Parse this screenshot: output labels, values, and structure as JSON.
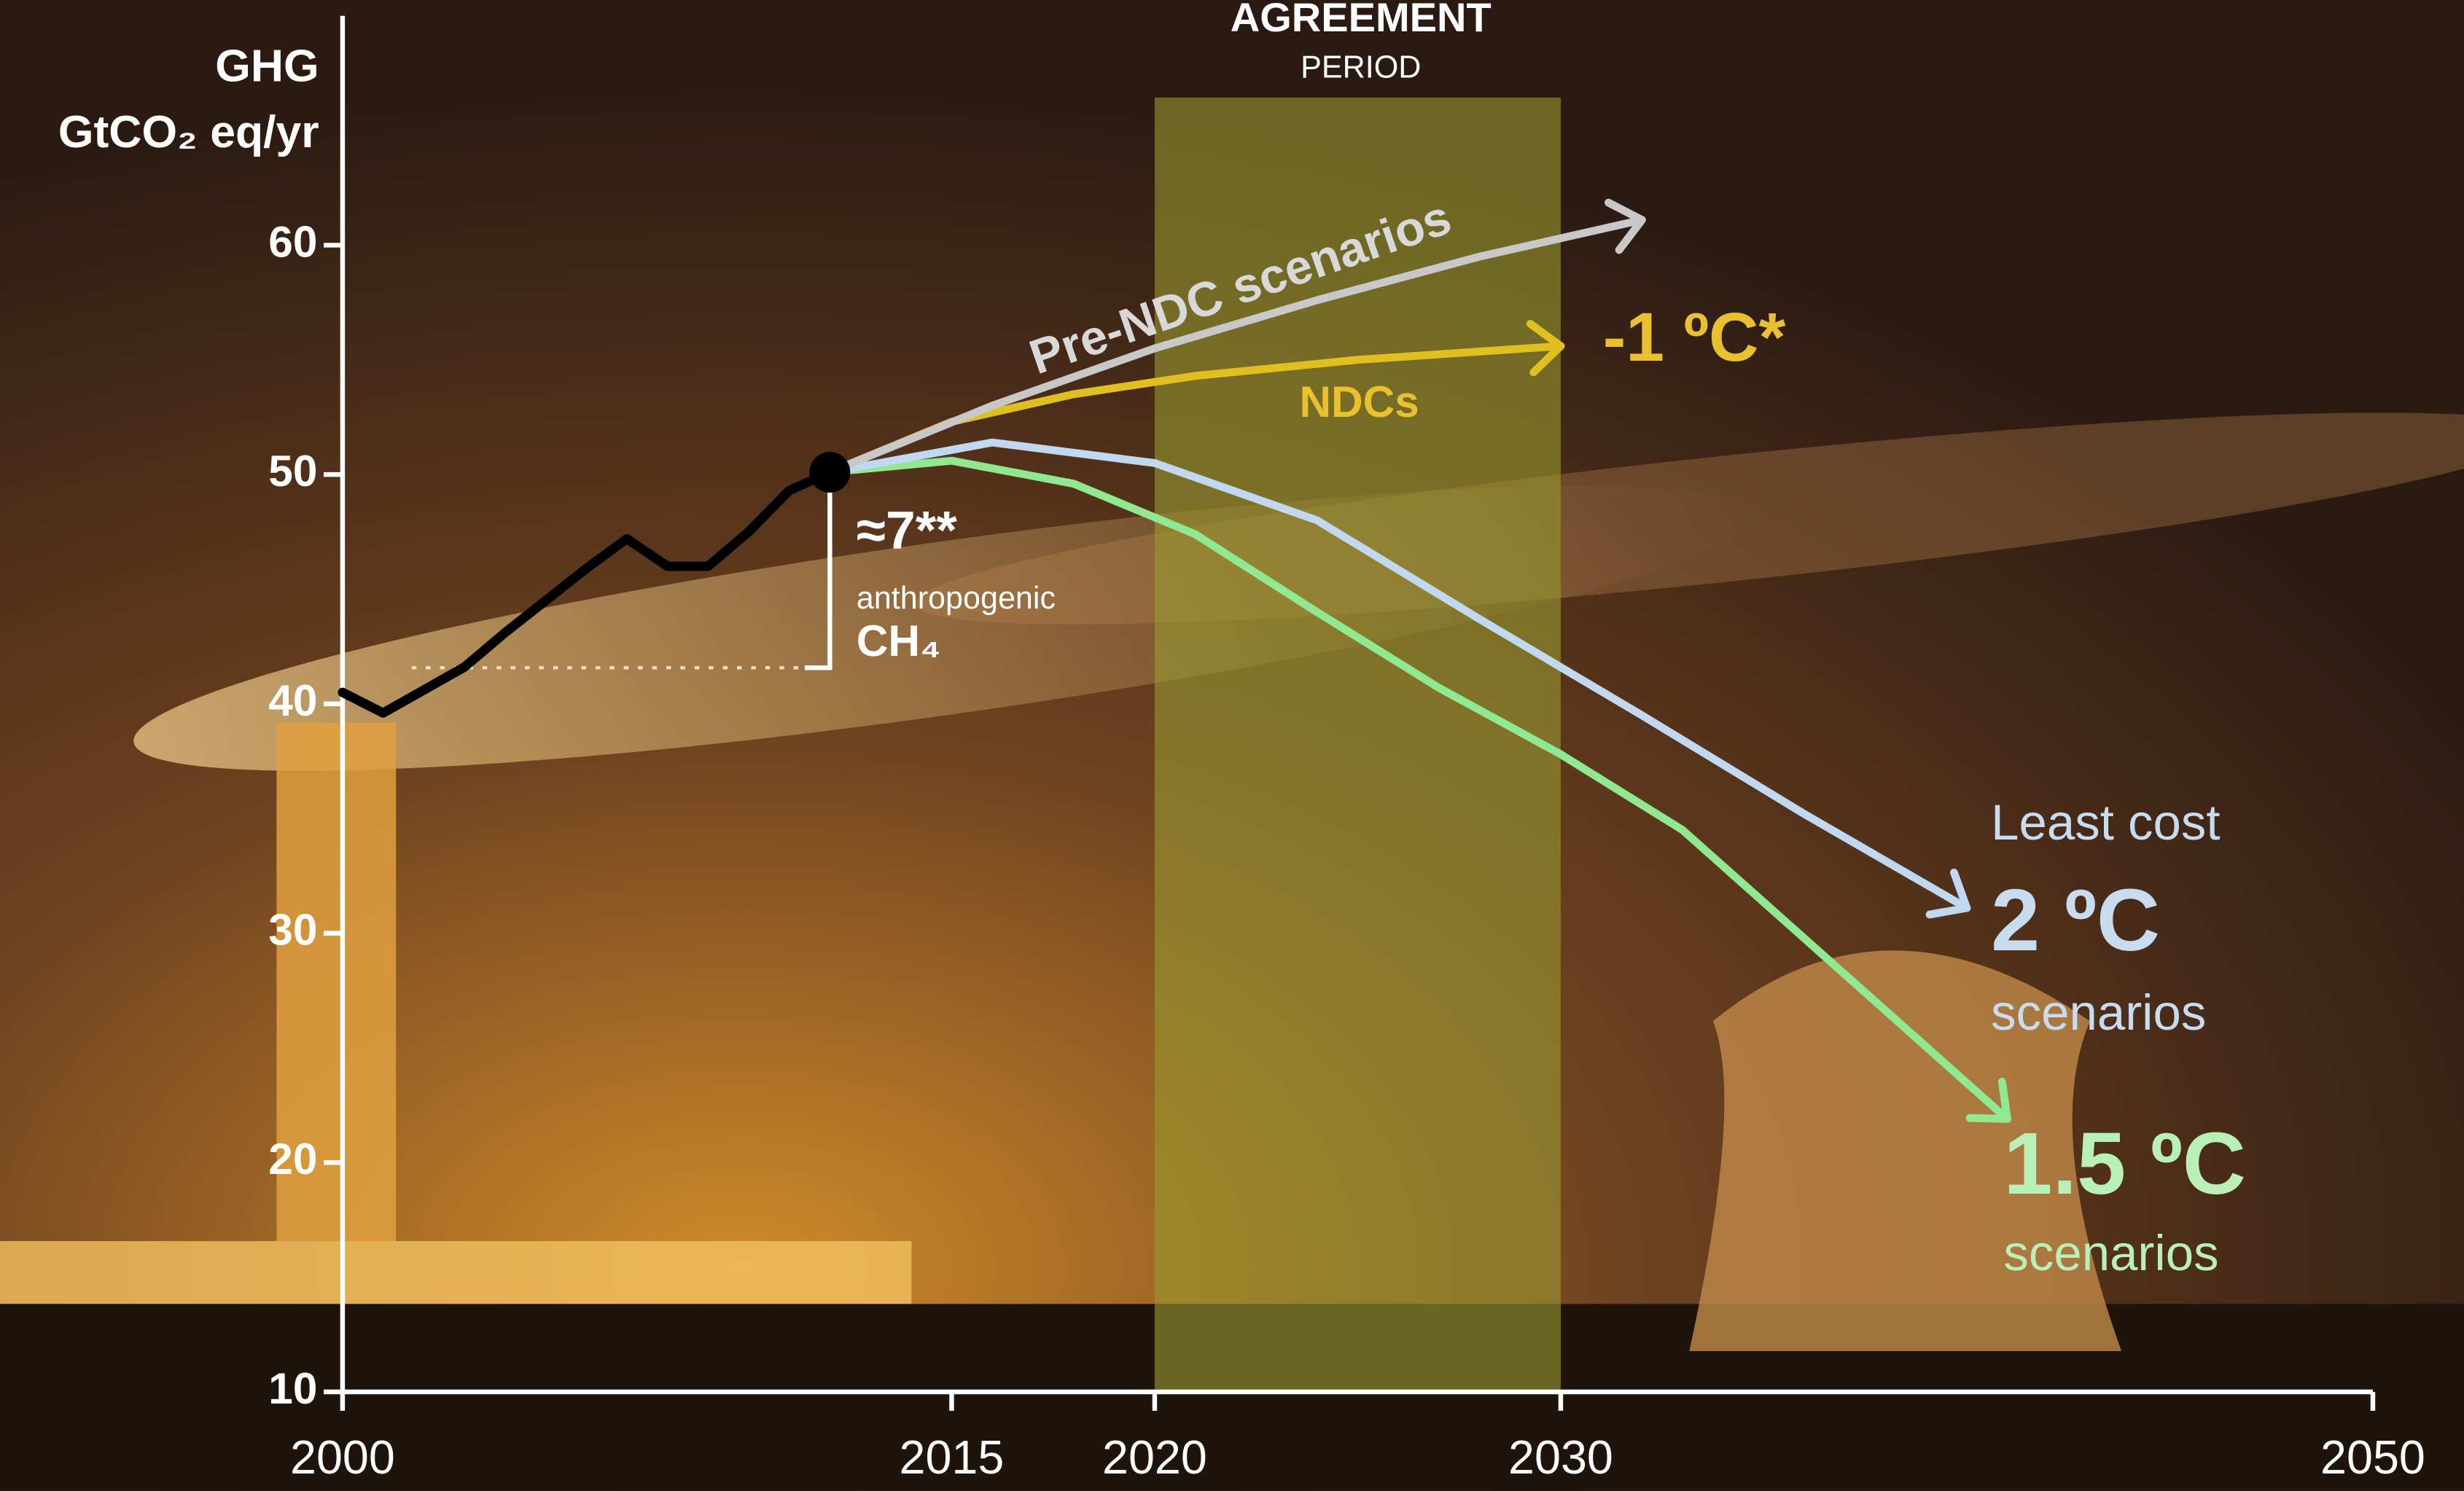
{
  "chart_data": {
    "type": "line",
    "y_label": [
      "GHG",
      "GtCO₂ eq/yr"
    ],
    "xlim": [
      2000,
      2050
    ],
    "xticks": [
      2000,
      2015,
      2020,
      2030,
      2050
    ],
    "ylim": [
      10,
      70
    ],
    "yticks": [
      10,
      20,
      30,
      40,
      50,
      60
    ],
    "shaded_period": {
      "label": [
        "AGREEMENT",
        "PERIOD"
      ],
      "x": [
        2020,
        2030
      ]
    },
    "series": [
      {
        "color": "#000000",
        "arrow": false,
        "x": [
          2000,
          2001,
          2002,
          2003,
          2004,
          2005,
          2006,
          2007,
          2008,
          2009,
          2010,
          2011,
          2012
        ],
        "values": [
          40.5,
          39.6,
          40.6,
          41.6,
          43.1,
          44.5,
          45.9,
          47.2,
          46.0,
          46.0,
          47.5,
          49.3,
          50.1
        ]
      },
      {
        "name": "Pre-NDC scenarios",
        "color": "#c8c8c8",
        "arrow": true,
        "x": [
          2012,
          2016,
          2020,
          2024,
          2028,
          2032
        ],
        "values": [
          50.1,
          53.0,
          55.5,
          57.6,
          59.5,
          61.1
        ]
      },
      {
        "name": "NDCs",
        "color": "#e0c020",
        "arrow": true,
        "x": [
          2012,
          2015,
          2018,
          2021,
          2025,
          2030
        ],
        "values": [
          50.1,
          52.3,
          53.5,
          54.3,
          55.0,
          55.6
        ]
      },
      {
        "name": "2 ºC",
        "color": "#c0d8f0",
        "arrow": true,
        "x": [
          2012,
          2016,
          2020,
          2024,
          2028,
          2032,
          2036,
          2040
        ],
        "values": [
          50.1,
          51.4,
          50.5,
          48.0,
          43.7,
          39.5,
          35.2,
          31.1
        ]
      },
      {
        "name": "1.5 ºC",
        "color": "#90e890",
        "arrow": true,
        "x": [
          2012,
          2015,
          2018,
          2021,
          2024,
          2027,
          2030,
          2033,
          2037,
          2041
        ],
        "values": [
          50.1,
          50.6,
          49.6,
          47.4,
          44.0,
          40.7,
          37.8,
          34.5,
          28.2,
          21.9
        ]
      }
    ],
    "annotations": {
      "ndc_warming": "-1 ºC*",
      "methane": [
        "≈7**",
        "anthropogenic",
        "CH₄"
      ],
      "two_degree": [
        "Least cost",
        "scenarios"
      ],
      "one_five_degree": [
        "scenarios"
      ]
    }
  }
}
